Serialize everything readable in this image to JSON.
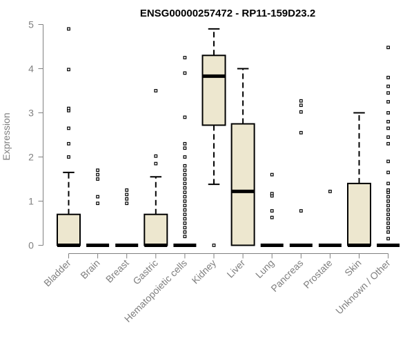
{
  "chart_data": {
    "type": "box",
    "title": "ENSG00000257472 - RP11-159D23.2",
    "xlabel": "",
    "ylabel": "Expression",
    "ylim": [
      0,
      5
    ],
    "yticks": [
      0,
      1,
      2,
      3,
      4,
      5
    ],
    "box_fill": "#ede7cf",
    "outlier_style": "open-square",
    "categories": [
      "Bladder",
      "Brain",
      "Breast",
      "Gastric",
      "Hematopoietic cells",
      "Kidney",
      "Liver",
      "Lung",
      "Pancreas",
      "Prostate",
      "Skin",
      "Unknown / Other"
    ],
    "boxes": [
      {
        "q1": 0,
        "median": 0,
        "q3": 0.7,
        "whisker_low": 0,
        "whisker_high": 1.65,
        "outliers": [
          2.0,
          2.3,
          2.65,
          3.05,
          3.1,
          3.98,
          4.9
        ]
      },
      {
        "q1": 0,
        "median": 0,
        "q3": 0,
        "whisker_low": 0,
        "whisker_high": 0,
        "outliers": [
          0.95,
          1.1,
          1.5,
          1.6,
          1.7
        ]
      },
      {
        "q1": 0,
        "median": 0,
        "q3": 0,
        "whisker_low": 0,
        "whisker_high": 0,
        "outliers": [
          0.95,
          1.05,
          1.15,
          1.25
        ]
      },
      {
        "q1": 0,
        "median": 0,
        "q3": 0.7,
        "whisker_low": 0,
        "whisker_high": 1.55,
        "outliers": [
          1.85,
          2.02,
          3.5
        ]
      },
      {
        "q1": 0,
        "median": 0,
        "q3": 0,
        "whisker_low": 0,
        "whisker_high": 0,
        "outliers": [
          0.2,
          0.3,
          0.4,
          0.5,
          0.6,
          0.7,
          0.8,
          0.9,
          1.0,
          1.1,
          1.2,
          1.3,
          1.4,
          1.5,
          1.6,
          1.7,
          1.8,
          2.0,
          2.2,
          2.3,
          2.9,
          3.9,
          4.25
        ]
      },
      {
        "q1": 2.72,
        "median": 3.83,
        "q3": 4.3,
        "whisker_low": 1.38,
        "whisker_high": 4.9,
        "outliers": [
          0
        ]
      },
      {
        "q1": 0,
        "median": 1.22,
        "q3": 2.75,
        "whisker_low": 0,
        "whisker_high": 4.0,
        "outliers": []
      },
      {
        "q1": 0,
        "median": 0,
        "q3": 0,
        "whisker_low": 0,
        "whisker_high": 0,
        "outliers": [
          0.63,
          0.78,
          1.12,
          1.17,
          1.6
        ]
      },
      {
        "q1": 0,
        "median": 0,
        "q3": 0,
        "whisker_low": 0,
        "whisker_high": 0,
        "outliers": [
          0.78,
          2.55,
          3.02,
          3.17,
          3.27
        ]
      },
      {
        "q1": 0,
        "median": 0,
        "q3": 0,
        "whisker_low": 0,
        "whisker_high": 0,
        "outliers": [
          1.22
        ]
      },
      {
        "q1": 0,
        "median": 0,
        "q3": 1.4,
        "whisker_low": 0,
        "whisker_high": 3.0,
        "outliers": []
      },
      {
        "q1": 0,
        "median": 0,
        "q3": 0,
        "whisker_low": 0,
        "whisker_high": 0,
        "outliers": [
          0.15,
          0.3,
          0.4,
          0.5,
          0.6,
          0.7,
          0.8,
          0.9,
          1.0,
          1.1,
          1.2,
          1.25,
          1.4,
          1.65,
          1.9,
          2.3,
          2.45,
          2.65,
          2.8,
          3.0,
          3.25,
          3.45,
          3.6,
          3.8,
          4.48
        ]
      }
    ]
  }
}
